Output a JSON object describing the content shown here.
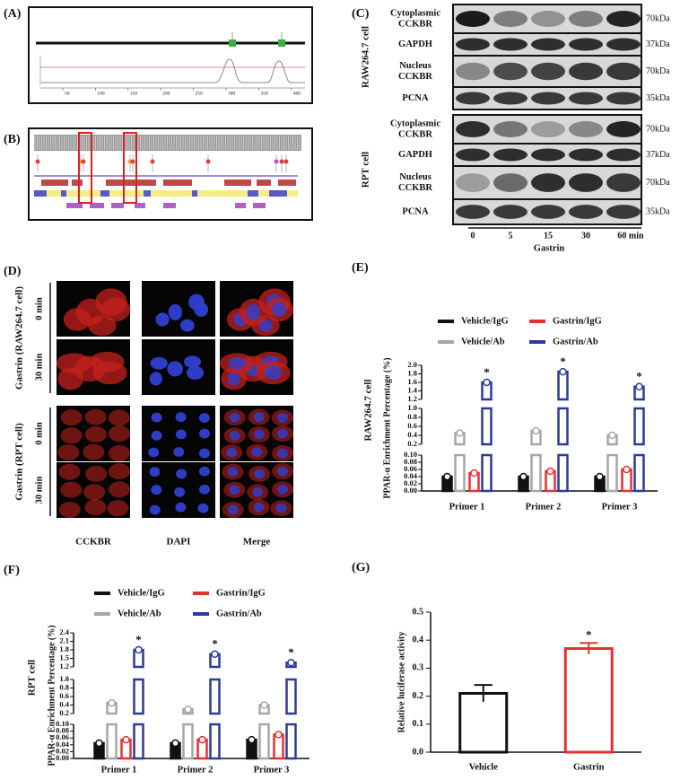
{
  "panel_labels": [
    "(A)",
    "(B)",
    "(C)",
    "(D)",
    "(E)",
    "(F)",
    "(G)"
  ],
  "panel_a": {
    "ticks": [
      "50",
      "100",
      "150",
      "200",
      "250",
      "300",
      "350",
      "400"
    ]
  },
  "panel_c": {
    "groups": [
      {
        "name": "RAW264.7 cell",
        "rows": [
          {
            "label": [
              "Cytoplasmic",
              "CCKBR"
            ],
            "size": "70kDa"
          },
          {
            "label": [
              "GAPDH"
            ],
            "size": "37kDa"
          },
          {
            "label": [
              "Nucleus",
              "CCKBR"
            ],
            "size": "70kDa"
          },
          {
            "label": [
              "PCNA"
            ],
            "size": "35kDa"
          }
        ]
      },
      {
        "name": "RPT cell",
        "rows": [
          {
            "label": [
              "Cytoplasmic",
              "CCKBR"
            ],
            "size": "70kDa"
          },
          {
            "label": [
              "GAPDH"
            ],
            "size": "37kDa"
          },
          {
            "label": [
              "Nucleus",
              "CCKBR"
            ],
            "size": "70kDa"
          },
          {
            "label": [
              "PCNA"
            ],
            "size": "35kDa"
          }
        ]
      }
    ],
    "times": [
      "0",
      "5",
      "15",
      "30",
      "60 min"
    ],
    "treatment": "Gastrin"
  },
  "panel_d": {
    "groups": [
      {
        "name": "Gastrin (RAW264.7 cell)",
        "rows": [
          "0 min",
          "30 min"
        ]
      },
      {
        "name": "Gastrin (RPT cell)",
        "rows": [
          "0 min",
          "30 min"
        ]
      }
    ],
    "columns": [
      "CCKBR",
      "DAPI",
      "Merge"
    ]
  },
  "chart_data": [
    {
      "type": "broken-bar",
      "panel_title": "RAW264.7 cell",
      "ylabel": "PPAR-α Enrichment Percentage (%)",
      "categories": [
        "Primer 1",
        "Primer 2",
        "Primer 3"
      ],
      "series": [
        {
          "name": "Vehicle/IgG",
          "color": "#111111",
          "values": [
            0.04,
            0.04,
            0.04
          ]
        },
        {
          "name": "Gastrin/IgG",
          "color": "#e8312f",
          "values": [
            0.05,
            0.055,
            0.06
          ]
        },
        {
          "name": "Vehicle/Ab",
          "color": "#a6a6a6",
          "values": [
            0.45,
            0.5,
            0.4
          ]
        },
        {
          "name": "Gastrin/Ab",
          "color": "#2b3a9c",
          "values": [
            1.6,
            1.85,
            1.5
          ]
        }
      ],
      "segments": [
        {
          "ylim": [
            0,
            0.1
          ],
          "yticks": [
            {
              "value": 0,
              "label": "0.00"
            },
            {
              "value": 0.02,
              "label": "0.02"
            },
            {
              "value": 0.04,
              "label": "0.04"
            },
            {
              "value": 0.06,
              "label": "0.06"
            },
            {
              "value": 0.08,
              "label": "0.08"
            },
            {
              "value": 0.1,
              "label": "0.10"
            }
          ]
        },
        {
          "ylim": [
            0.2,
            1.0
          ],
          "yticks": [
            0.2,
            0.4,
            0.6,
            0.8,
            {
              "value": 1.0,
              "label": "1.0"
            }
          ]
        },
        {
          "ylim": [
            1.2,
            2.0
          ],
          "yticks": [
            1.2,
            1.4,
            1.6,
            1.8,
            {
              "value": 2.0,
              "label": "2.0"
            }
          ]
        }
      ],
      "annotations": [
        "*",
        "*",
        "*"
      ]
    },
    {
      "type": "broken-bar",
      "panel_title": "RPT cell",
      "ylabel": "PPAR-α Enrichment Percentage (%)",
      "categories": [
        "Primer 1",
        "Primer 2",
        "Primer 3"
      ],
      "series": [
        {
          "name": "Vehicle/IgG",
          "color": "#111111",
          "values": [
            0.045,
            0.045,
            0.055
          ]
        },
        {
          "name": "Gastrin/IgG",
          "color": "#e8312f",
          "values": [
            0.055,
            0.055,
            0.07
          ]
        },
        {
          "name": "Vehicle/Ab",
          "color": "#a6a6a6",
          "values": [
            0.45,
            0.3,
            0.4
          ]
        },
        {
          "name": "Gastrin/Ab",
          "color": "#2b3a9c",
          "values": [
            1.8,
            1.65,
            1.35
          ]
        }
      ],
      "segments": [
        {
          "ylim": [
            0,
            0.1
          ],
          "yticks": [
            {
              "value": 0,
              "label": "0.00"
            },
            {
              "value": 0.02,
              "label": "0.02"
            },
            {
              "value": 0.04,
              "label": "0.04"
            },
            {
              "value": 0.06,
              "label": "0.06"
            },
            {
              "value": 0.08,
              "label": "0.08"
            },
            {
              "value": 0.1,
              "label": "0.10"
            }
          ]
        },
        {
          "ylim": [
            0.2,
            1.0
          ],
          "yticks": [
            0.2,
            0.4,
            0.6,
            0.8,
            {
              "value": 1.0,
              "label": "1.0"
            }
          ]
        },
        {
          "ylim": [
            1.2,
            2.4
          ],
          "yticks": [
            1.2,
            1.5,
            1.8,
            2.1,
            2.4
          ]
        }
      ],
      "annotations": [
        "*",
        "*",
        "*"
      ]
    },
    {
      "type": "bar",
      "ylabel": "Relative luciferase activity",
      "categories": [
        "Vehicle",
        "Gastrin"
      ],
      "values": [
        0.21,
        0.37
      ],
      "errors": [
        0.03,
        0.02
      ],
      "colors": [
        "#111111",
        "#e8312f"
      ],
      "ylim": [
        0,
        0.5
      ],
      "yticks": [
        {
          "value": 0,
          "label": "0.0"
        },
        0.1,
        0.2,
        0.3,
        0.4,
        0.5
      ],
      "annotations": [
        null,
        "*"
      ]
    }
  ]
}
